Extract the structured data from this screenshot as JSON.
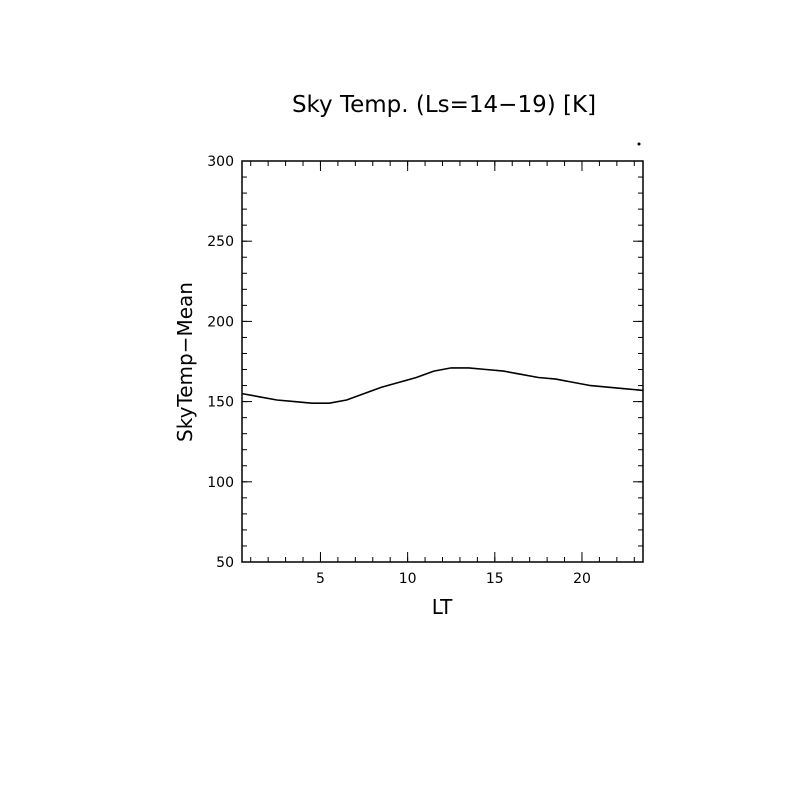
{
  "chart_data": {
    "type": "line",
    "title": "Sky Temp. (Ls=14−19) [K]",
    "xlabel": "LT",
    "ylabel": "SkyTemp−Mean",
    "xlim": [
      0.5,
      23.5
    ],
    "ylim": [
      50,
      300
    ],
    "xticks": [
      5,
      10,
      15,
      20
    ],
    "yticks": [
      50,
      100,
      150,
      200,
      250,
      300
    ],
    "series": [
      {
        "x": [
          0.5,
          1.5,
          2.5,
          3.5,
          4.5,
          5.5,
          6.5,
          7.5,
          8.5,
          9.5,
          10.5,
          11.5,
          12.5,
          13.5,
          14.5,
          15.5,
          16.5,
          17.5,
          18.5,
          19.5,
          20.5,
          21.5,
          22.5,
          23.5
        ],
        "y": [
          155,
          153,
          151,
          150,
          149,
          149,
          151,
          155,
          159,
          162,
          165,
          169,
          171,
          171,
          170,
          169,
          167,
          165,
          164,
          162,
          160,
          159,
          158,
          157
        ]
      }
    ],
    "grid": false,
    "legend": "none"
  }
}
